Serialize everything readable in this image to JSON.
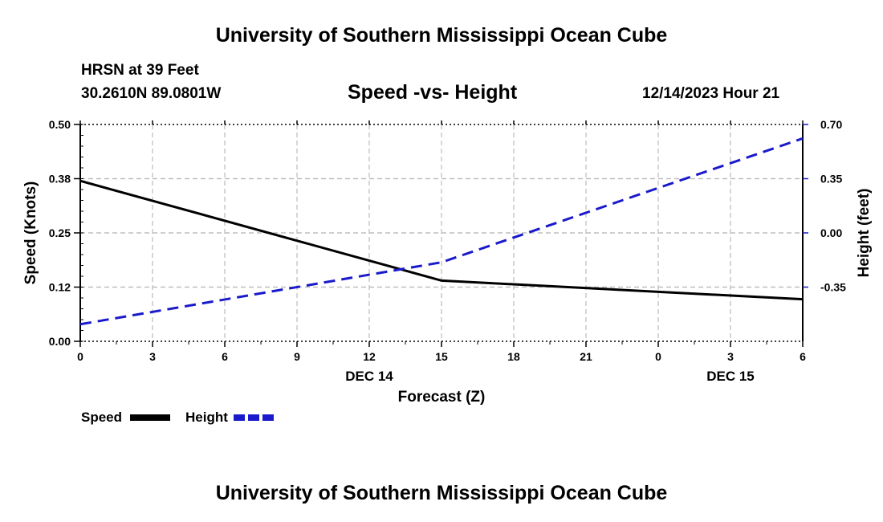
{
  "header": {
    "title": "University of Southern Mississippi Ocean Cube",
    "station": "HRSN at 39 Feet",
    "location": "30.2610N  89.0801W",
    "chart_title": "Speed -vs- Height",
    "timestamp": "12/14/2023 Hour 21"
  },
  "footer": {
    "title": "University of Southern Mississippi Ocean Cube"
  },
  "chart_data": {
    "type": "line",
    "title": "Speed -vs- Height",
    "xlabel": "Forecast (Z)",
    "ylabel_left": "Speed (Knots)",
    "ylabel_right": "Height (feet)",
    "x_ticks": [
      "0",
      "3",
      "6",
      "9",
      "12",
      "15",
      "18",
      "21",
      "0",
      "3",
      "6"
    ],
    "x_date_labels": [
      {
        "tick_index": 4,
        "label": "DEC 14"
      },
      {
        "tick_index": 9,
        "label": "DEC 15"
      }
    ],
    "x_range": [
      0,
      30
    ],
    "y_left_ticks": [
      "0.00",
      "0.12",
      "0.25",
      "0.38",
      "0.50"
    ],
    "y_left_range": [
      0,
      0.5
    ],
    "y_right_ticks": [
      "-0.35",
      "0.00",
      "0.35",
      "0.70"
    ],
    "y_right_range": [
      -0.7,
      0.7
    ],
    "grid": true,
    "series": [
      {
        "name": "Speed",
        "axis": "left",
        "color": "#000000",
        "style": "solid",
        "x": [
          0,
          15,
          30
        ],
        "values": [
          0.37,
          0.14,
          0.097
        ]
      },
      {
        "name": "Height",
        "axis": "right",
        "color": "#1a1acc",
        "style": "dashed",
        "x": [
          0,
          15,
          30
        ],
        "values": [
          -0.59,
          -0.19,
          0.61
        ]
      }
    ],
    "legend": [
      "Speed",
      "Height"
    ]
  }
}
